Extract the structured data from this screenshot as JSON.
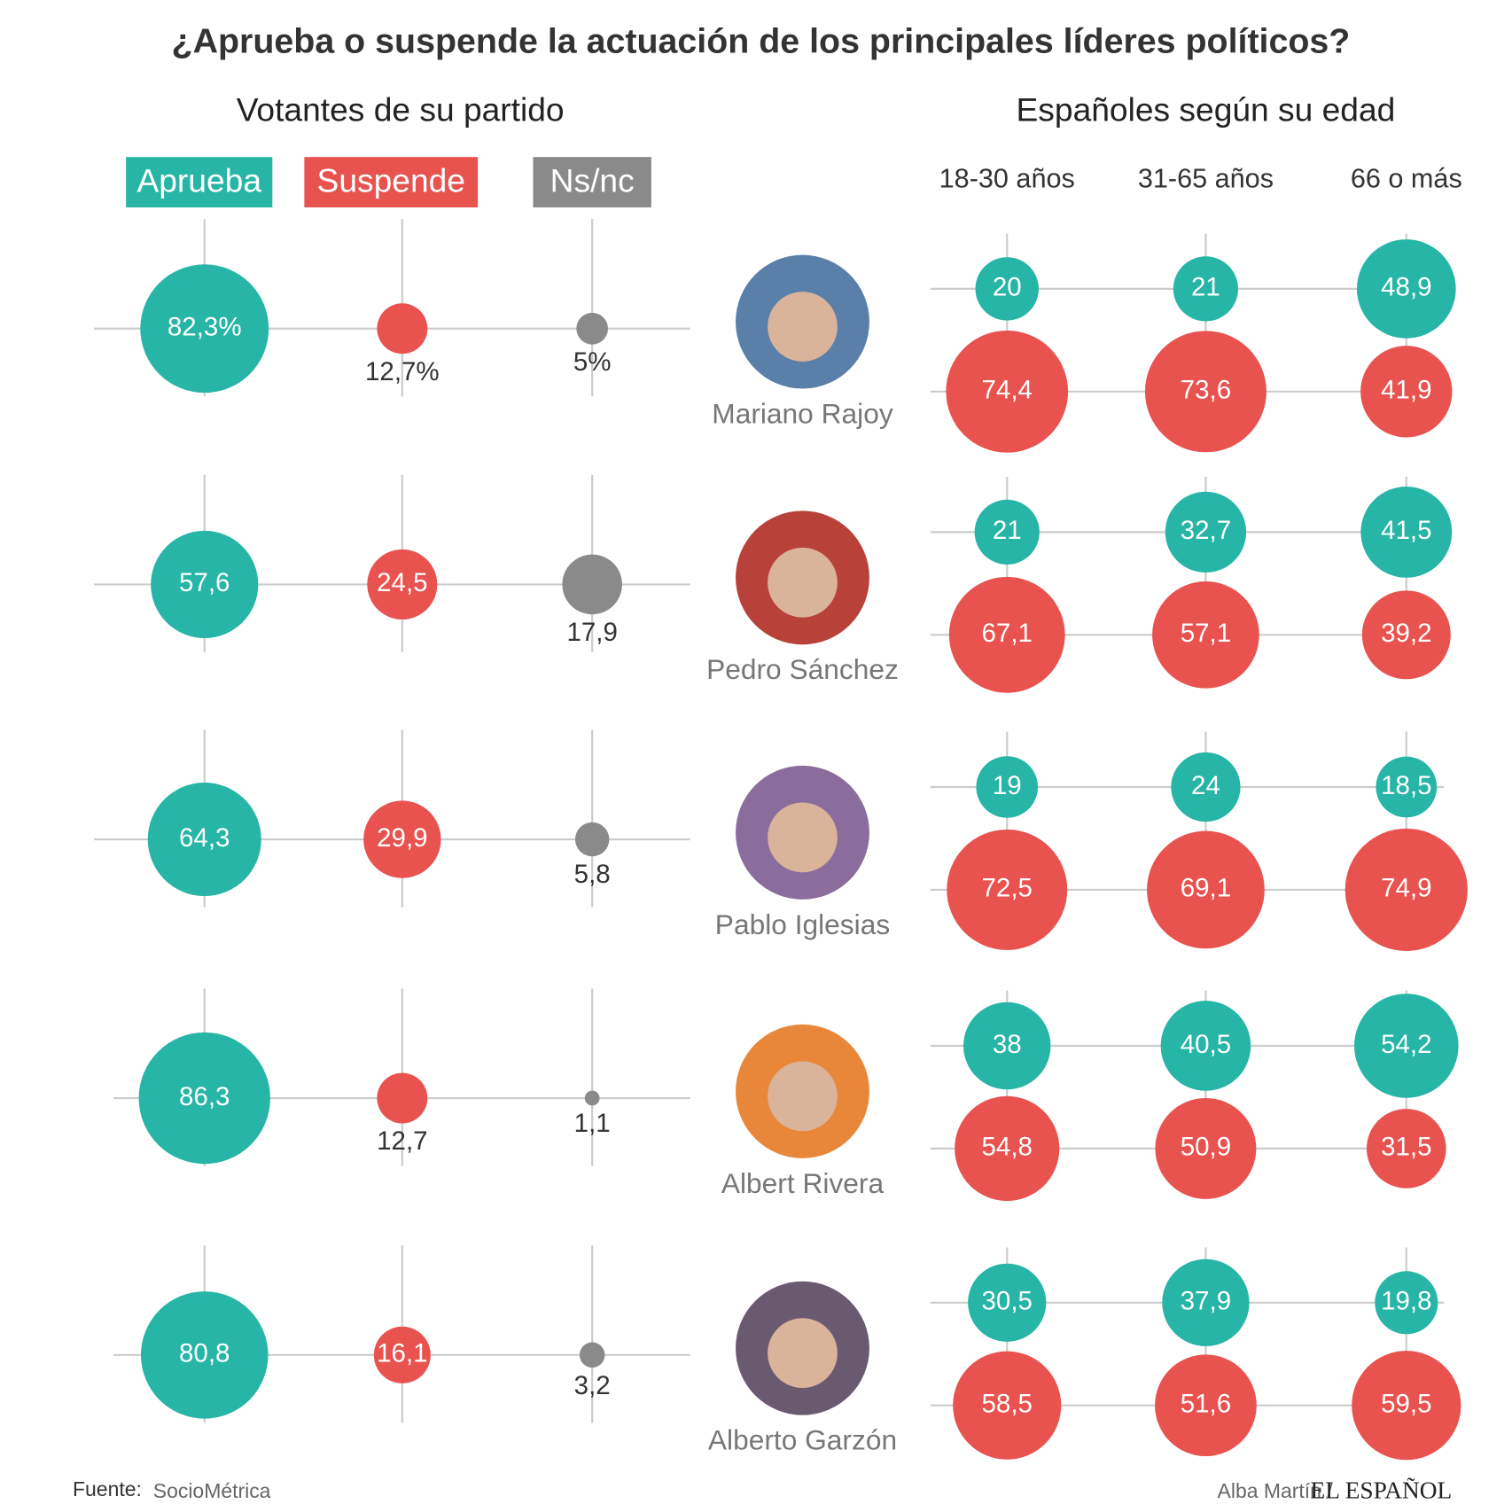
{
  "chart_data": {
    "type": "bubble",
    "title": "¿Aprueba o suspende la actuación de los principales líderes políticos?",
    "left_title": "Votantes de su partido",
    "right_title": "Españoles según su edad",
    "leaders": [
      "Mariano Rajoy",
      "Pedro Sánchez",
      "Pablo Iglesias",
      "Albert Rivera",
      "Alberto Garzón"
    ],
    "age_groups": [
      "18-30 años",
      "31-65 años",
      "66 o más"
    ],
    "series": [
      {
        "name": "Aprueba",
        "color": "#26b5a6",
        "values": [
          82.3,
          57.6,
          64.3,
          86.3,
          80.8
        ],
        "value_labels": [
          "82,3%",
          "57,6",
          "64,3",
          "86,3",
          "80,8"
        ]
      },
      {
        "name": "Suspende",
        "color": "#e8524f",
        "values": [
          12.7,
          24.5,
          29.9,
          12.7,
          16.1
        ],
        "value_labels": [
          "12,7%",
          "24,5",
          "29,9",
          "12,7",
          "16,1"
        ]
      },
      {
        "name": "Ns/nc",
        "color": "#8a8a8a",
        "values": [
          5,
          17.9,
          5.8,
          1.1,
          3.2
        ],
        "value_labels": [
          "5%",
          "17,9",
          "5,8",
          "1,1",
          "3,2"
        ]
      }
    ],
    "age_series": [
      {
        "name": "Aprueba",
        "color": "#26b5a6",
        "values": [
          [
            20,
            21,
            48.9
          ],
          [
            21,
            32.7,
            41.5
          ],
          [
            19,
            24,
            18.5
          ],
          [
            38,
            40.5,
            54.2
          ],
          [
            30.5,
            37.9,
            19.8
          ]
        ],
        "value_labels": [
          [
            "20",
            "21",
            "48,9"
          ],
          [
            "21",
            "32,7",
            "41,5"
          ],
          [
            "19",
            "24",
            "18,5"
          ],
          [
            "38",
            "40,5",
            "54,2"
          ],
          [
            "30,5",
            "37,9",
            "19,8"
          ]
        ]
      },
      {
        "name": "Suspende",
        "color": "#e8524f",
        "values": [
          [
            74.4,
            73.6,
            41.9
          ],
          [
            67.1,
            57.1,
            39.2
          ],
          [
            72.5,
            69.1,
            74.9
          ],
          [
            54.8,
            50.9,
            31.5
          ],
          [
            58.5,
            51.6,
            59.5
          ]
        ],
        "value_labels": [
          [
            "74,4",
            "73,6",
            "41,9"
          ],
          [
            "67,1",
            "57,1",
            "39,2"
          ],
          [
            "72,5",
            "69,1",
            "74,9"
          ],
          [
            "54,8",
            "50,9",
            "31,5"
          ],
          [
            "58,5",
            "51,6",
            "59,5"
          ]
        ]
      }
    ],
    "source_label": "Fuente:",
    "source": "SocioMétrica",
    "author": "Alba Martín /",
    "publisher": "EL ESPAÑOL"
  }
}
